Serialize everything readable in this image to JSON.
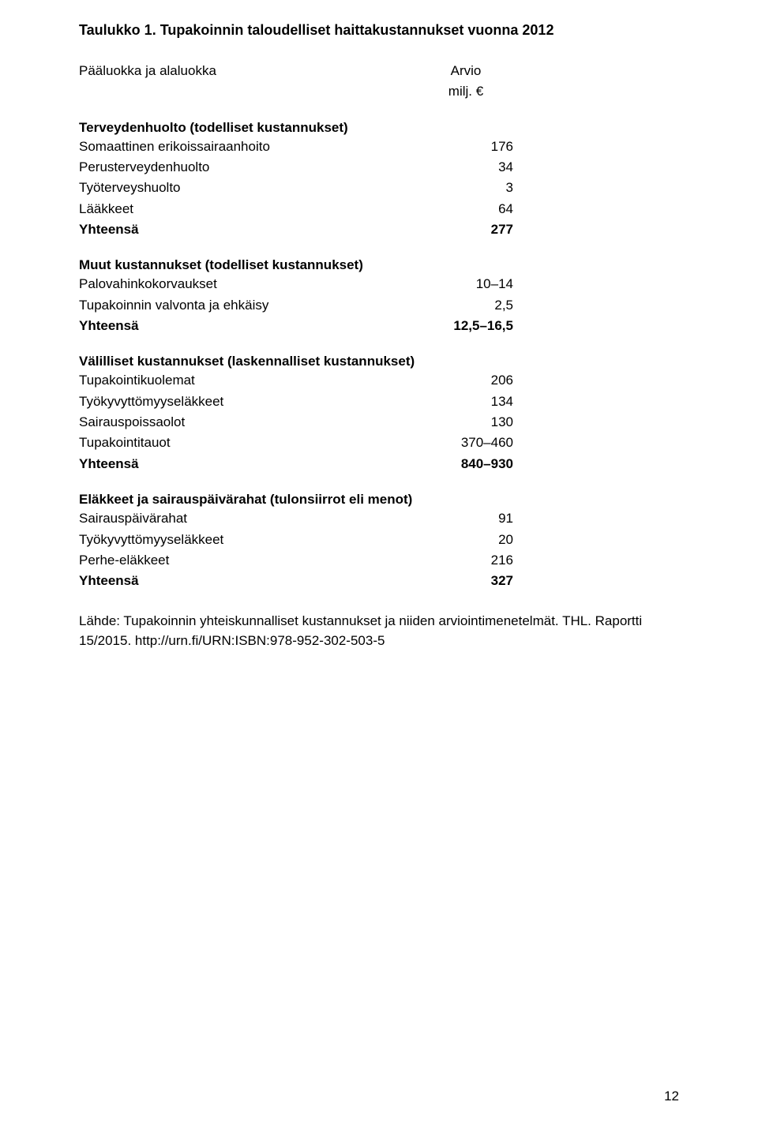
{
  "title": "Taulukko 1. Tupakoinnin taloudelliset haittakustannukset vuonna 2012",
  "header": {
    "col1": "Pääluokka ja alaluokka",
    "col2_line1": "Arvio",
    "col2_line2": "milj. €"
  },
  "sections": [
    {
      "heading": "Terveydenhuolto (todelliset kustannukset)",
      "rows": [
        {
          "label": "Somaattinen erikoissairaanhoito",
          "value": "176"
        },
        {
          "label": "Perusterveydenhuolto",
          "value": "34"
        },
        {
          "label": "Työterveyshuolto",
          "value": "3"
        },
        {
          "label": "Lääkkeet",
          "value": "64"
        }
      ],
      "total": {
        "label": "Yhteensä",
        "value": "277"
      }
    },
    {
      "heading": "Muut kustannukset (todelliset kustannukset)",
      "rows": [
        {
          "label": "Palovahinkokorvaukset",
          "value": "10–14"
        },
        {
          "label": "Tupakoinnin valvonta ja ehkäisy",
          "value": "2,5"
        }
      ],
      "total": {
        "label": "Yhteensä",
        "value": "12,5–16,5"
      }
    },
    {
      "heading": "Välilliset kustannukset (laskennalliset kustannukset)",
      "rows": [
        {
          "label": "Tupakointikuolemat",
          "value": "206"
        },
        {
          "label": "Työkyvyttömyyseläkkeet",
          "value": "134"
        },
        {
          "label": "Sairauspoissaolot",
          "value": "130"
        },
        {
          "label": "Tupakointitauot",
          "value": "370–460"
        }
      ],
      "total": {
        "label": "Yhteensä",
        "value": "840–930"
      }
    },
    {
      "heading": "Eläkkeet ja sairauspäivärahat (tulonsiirrot eli menot)",
      "rows": [
        {
          "label": "Sairauspäivärahat",
          "value": "91"
        },
        {
          "label": "Työkyvyttömyyseläkkeet",
          "value": "20"
        },
        {
          "label": "Perhe-eläkkeet",
          "value": "216"
        }
      ],
      "total": {
        "label": "Yhteensä",
        "value": "327"
      }
    }
  ],
  "source": "Lähde: Tupakoinnin yhteiskunnalliset kustannukset ja niiden arviointimenetelmät. THL. Raportti 15/2015. http://urn.fi/URN:ISBN:978-952-302-503-5",
  "page_number": "12"
}
